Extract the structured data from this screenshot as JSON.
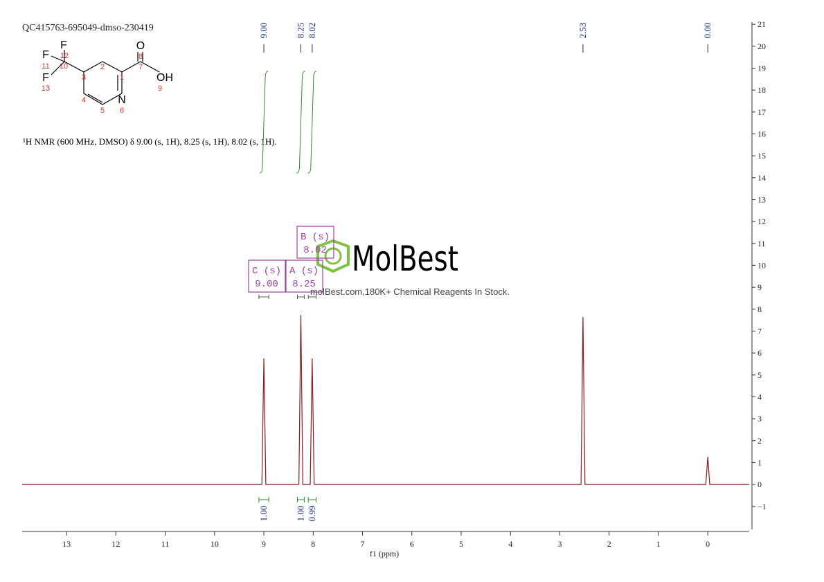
{
  "title": "QC415763-695049-dmso-230419",
  "description": "¹H NMR (600 MHz, DMSO) δ 9.00 (s, 1H), 8.25 (s, 1H), 8.02 (s, 1H).",
  "molecule": {
    "atoms": [
      "F",
      "F",
      "F",
      "O",
      "OH",
      "N"
    ],
    "numbers": [
      "1",
      "2",
      "3",
      "4",
      "5",
      "6",
      "7",
      "8",
      "9",
      "10",
      "11",
      "12",
      "13"
    ]
  },
  "watermark": {
    "logo": "MolBest",
    "text": "molBest.com,180K+ Chemical Reagents In Stock."
  },
  "chart_data": {
    "type": "line",
    "x_label": "f1 (ppm)",
    "xlim": [
      13.9,
      -0.84
    ],
    "xticks": [
      13,
      12,
      11,
      10,
      9,
      8,
      7,
      6,
      5,
      4,
      3,
      2,
      1,
      0
    ],
    "ylim": [
      -2.05,
      21.1
    ],
    "yticks": [
      {
        "value": -1,
        "label": "−1"
      },
      0,
      1,
      2,
      3,
      4,
      5,
      6,
      7,
      8,
      9,
      10,
      11,
      12,
      13,
      14,
      15,
      16,
      17,
      18,
      19,
      20,
      21
    ],
    "grid": false,
    "series": [
      {
        "color": "#8b1a1a",
        "x": [
          13.9,
          9.04,
          9.0,
          8.96,
          8.29,
          8.25,
          8.21,
          8.06,
          8.02,
          7.98,
          2.57,
          2.53,
          2.49,
          0.04,
          0.0,
          -0.04,
          -0.84
        ],
        "values": [
          0,
          0,
          5.75,
          0,
          0,
          7.74,
          0,
          0,
          5.75,
          0,
          0,
          7.64,
          0,
          0,
          1.26,
          0,
          0
        ]
      }
    ],
    "peak_labels": [
      {
        "value": 9.0,
        "label": "9.00"
      },
      {
        "value": 8.25,
        "label": "8.25"
      },
      {
        "value": 8.02,
        "label": "8.02"
      },
      {
        "value": 2.53,
        "label": "2.53"
      },
      {
        "value": 0.0,
        "label": "0.00"
      }
    ],
    "multiplets": [
      {
        "name": "C (s)",
        "shift": "9.00"
      },
      {
        "name": "A (s)",
        "shift": "8.25"
      },
      {
        "name": "B (s)",
        "shift": "8.02"
      }
    ],
    "integrals": {
      "ranges": [
        [
          9.1,
          8.9
        ],
        [
          8.32,
          8.18
        ],
        [
          8.1,
          7.94
        ]
      ],
      "values": [
        1.0,
        1.0,
        0.99
      ],
      "value_labels": [
        "1.00",
        "1.00",
        "0.99"
      ]
    }
  }
}
